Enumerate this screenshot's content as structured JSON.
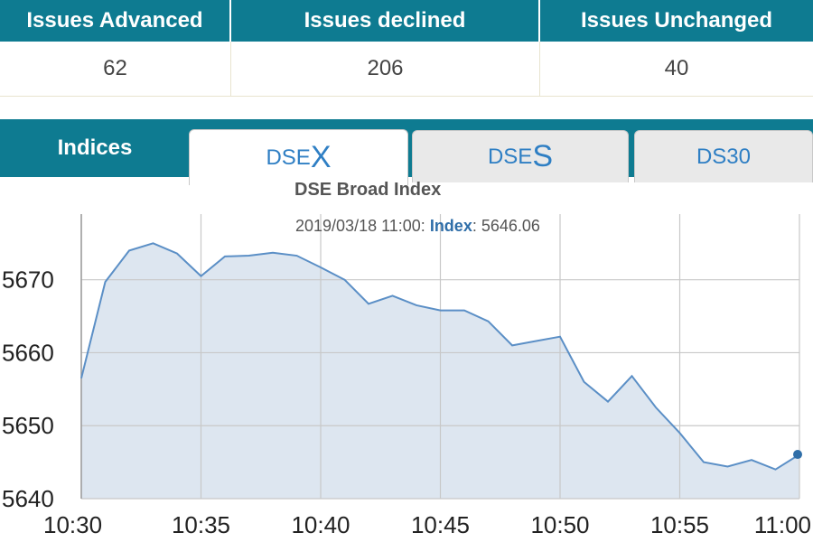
{
  "issues": {
    "headers": [
      "Issues Advanced",
      "Issues declined",
      "Issues Unchanged"
    ],
    "values": [
      "62",
      "206",
      "40"
    ]
  },
  "indices": {
    "label": "Indices",
    "tabs": [
      {
        "prefix": "DSE",
        "suffix": "X",
        "active": true
      },
      {
        "prefix": "DSE",
        "suffix": "S",
        "active": false
      },
      {
        "label": "DS30",
        "active": false
      }
    ]
  },
  "chart": {
    "tooltip": {
      "timestamp": "2019/03/18 11:00",
      "label": "Index",
      "value": "5646.06"
    }
  },
  "colors": {
    "header_bg": "#0e7b91",
    "tab_text": "#2f7fc4",
    "series_line": "#5b8fc6",
    "series_fill": "#dde6f0",
    "grid": "#c8c8c8"
  },
  "chart_data": {
    "type": "area",
    "title": "DSE Broad Index",
    "xlabel": "",
    "ylabel": "",
    "x_ticks": [
      "10:30",
      "10:35",
      "10:40",
      "10:45",
      "10:50",
      "10:55",
      "11:00"
    ],
    "y_ticks": [
      5640,
      5650,
      5660,
      5670
    ],
    "xlim": [
      "10:30",
      "11:00"
    ],
    "ylim": [
      5640,
      5679
    ],
    "grid": true,
    "series": [
      {
        "x": [
          "10:30",
          "10:31",
          "10:32",
          "10:33",
          "10:34",
          "10:35",
          "10:36",
          "10:37",
          "10:38",
          "10:39",
          "10:40",
          "10:41",
          "10:42",
          "10:43",
          "10:44",
          "10:45",
          "10:46",
          "10:47",
          "10:48",
          "10:49",
          "10:50",
          "10:51",
          "10:52",
          "10:53",
          "10:54",
          "10:55",
          "10:56",
          "10:57",
          "10:58",
          "10:59",
          "11:00"
        ],
        "values": [
          5656.5,
          5669.7,
          5674,
          5675,
          5673.6,
          5670.5,
          5673.2,
          5673.3,
          5673.7,
          5673.3,
          5671.7,
          5670,
          5666.7,
          5667.8,
          5666.5,
          5665.8,
          5665.8,
          5664.3,
          5661,
          5661.6,
          5662.2,
          5656,
          5653.3,
          5656.8,
          5652.5,
          5649,
          5645,
          5644.4,
          5645.3,
          5644,
          5646.06
        ]
      }
    ]
  }
}
